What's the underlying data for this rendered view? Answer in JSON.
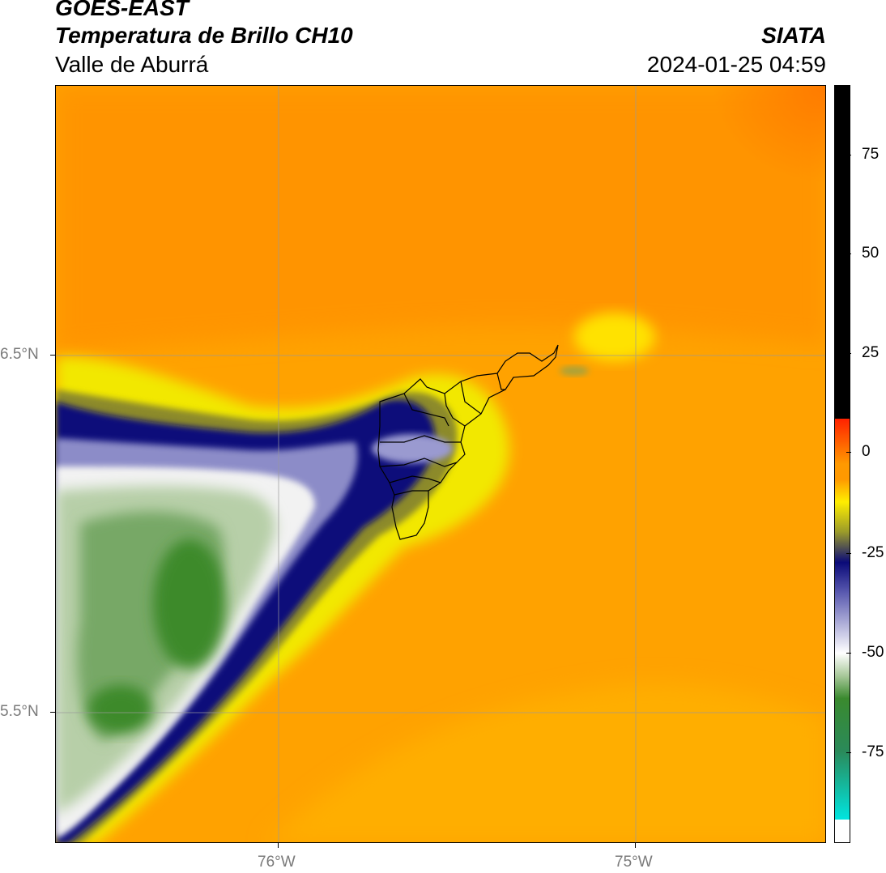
{
  "header": {
    "satellite": "GOES-EAST",
    "product": "Temperatura de Brillo CH10",
    "region": "Valle de Aburrá",
    "organization": "SIATA",
    "timestamp": "2024-01-25 04:59"
  },
  "axes": {
    "x_ticks": [
      "76°W",
      "75°W"
    ],
    "y_ticks": [
      "6.5°N",
      "5.5°N"
    ]
  },
  "colorbar": {
    "ticks": [
      "75",
      "50",
      "25",
      "0",
      "-25",
      "-50",
      "-75"
    ],
    "colors": {
      "black_segment": "#000000",
      "red": "#ff2200",
      "orange": "#ff9900",
      "yellow": "#ffee00",
      "dark_blue": "#0a0a78",
      "white": "#ffffff",
      "green": "#3a8a2e",
      "cyan": "#00e5e0"
    }
  },
  "map": {
    "background_color": "#ffa500",
    "grid": true
  }
}
